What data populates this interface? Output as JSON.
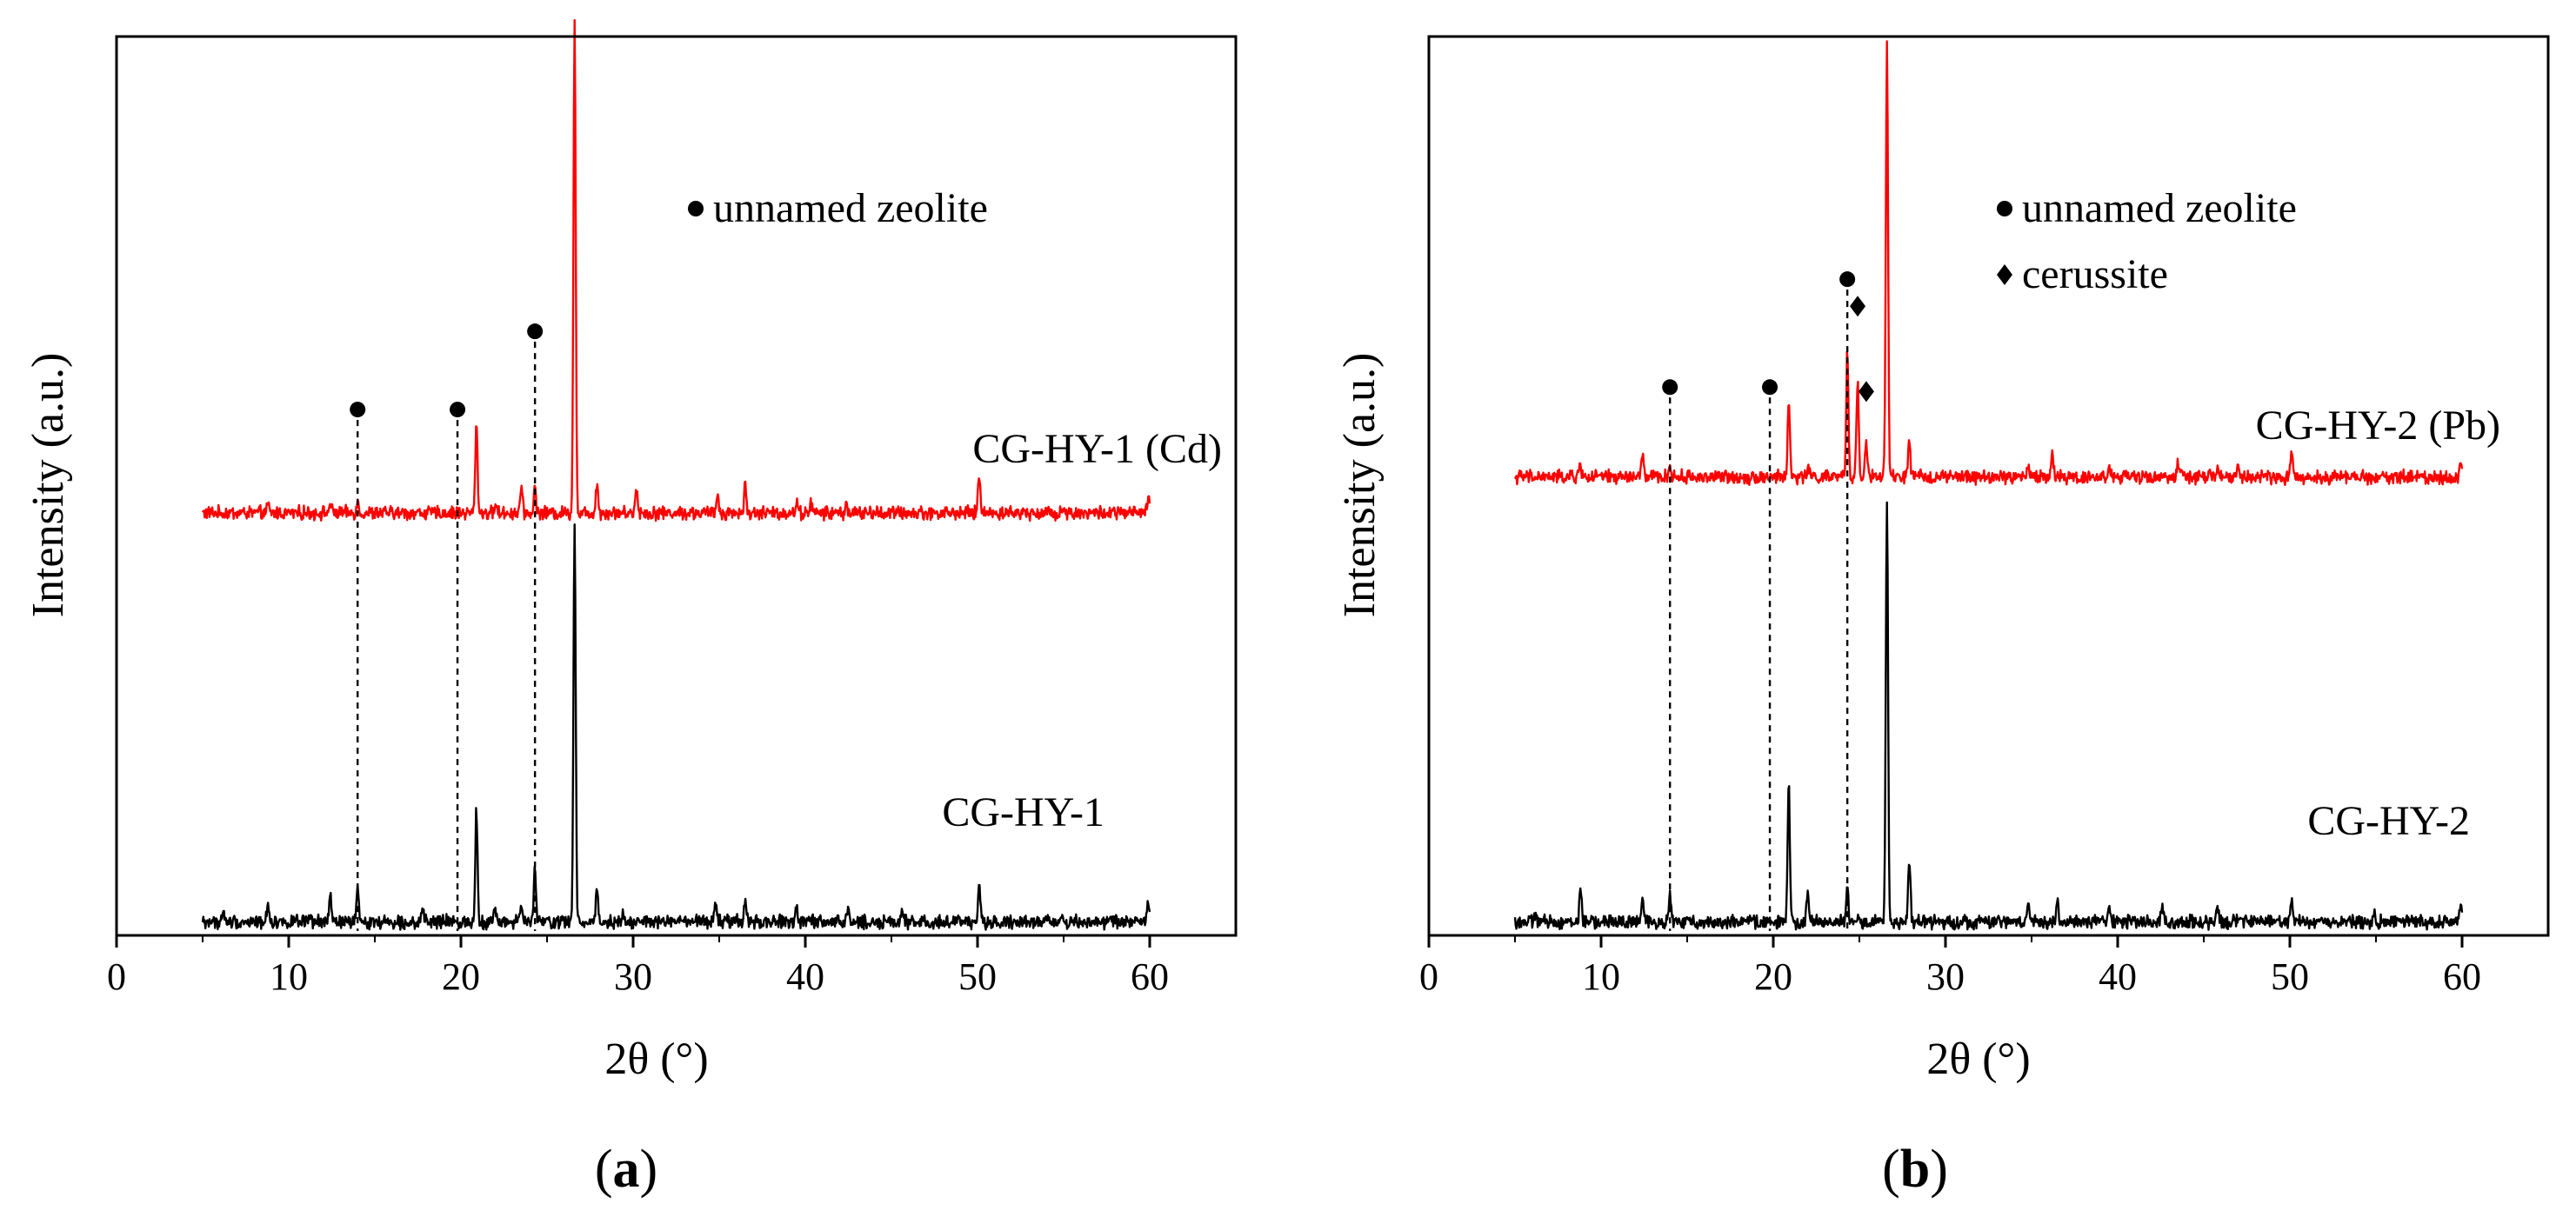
{
  "chart_data": [
    {
      "type": "line",
      "panel_label": "a",
      "xlabel": "2θ (°)",
      "ylabel": "Intensity (a.u.)",
      "xlim": [
        0,
        65
      ],
      "ylim": [
        0,
        1
      ],
      "xticks": [
        0,
        10,
        20,
        30,
        40,
        50,
        60
      ],
      "legend": [
        {
          "marker": "circle",
          "label": "unnamed zeolite"
        }
      ],
      "reference_lines": [
        {
          "x": 14.0,
          "marker": "circle",
          "marker_y": 0.585
        },
        {
          "x": 19.8,
          "marker": "circle",
          "marker_y": 0.585
        },
        {
          "x": 24.3,
          "marker": "circle",
          "marker_y": 0.672
        }
      ],
      "series": [
        {
          "name": "CG-HY-1 (Cd)",
          "color": "#ff0000",
          "baseline": 0.47,
          "x_range": [
            5,
            60
          ],
          "noise": 0.006,
          "peaks": [
            [
              8.8,
              0.008
            ],
            [
              12.4,
              0.01
            ],
            [
              14.0,
              0.012
            ],
            [
              20.9,
              0.1
            ],
            [
              22.0,
              0.01
            ],
            [
              23.5,
              0.03
            ],
            [
              24.3,
              0.028
            ],
            [
              26.6,
              0.55
            ],
            [
              27.9,
              0.035
            ],
            [
              30.2,
              0.03
            ],
            [
              34.9,
              0.02
            ],
            [
              36.5,
              0.03
            ],
            [
              39.5,
              0.012
            ],
            [
              40.3,
              0.012
            ],
            [
              42.4,
              0.01
            ],
            [
              50.1,
              0.045
            ],
            [
              54.9,
              0.006
            ],
            [
              59.9,
              0.016
            ]
          ]
        },
        {
          "name": "CG-HY-1",
          "color": "#000000",
          "baseline": 0.015,
          "x_range": [
            5,
            60
          ],
          "noise": 0.006,
          "peaks": [
            [
              6.2,
              0.01
            ],
            [
              8.8,
              0.022
            ],
            [
              12.4,
              0.03
            ],
            [
              14.0,
              0.035
            ],
            [
              17.8,
              0.01
            ],
            [
              20.9,
              0.125
            ],
            [
              22.0,
              0.015
            ],
            [
              23.5,
              0.02
            ],
            [
              24.3,
              0.06
            ],
            [
              26.6,
              0.44
            ],
            [
              27.9,
              0.04
            ],
            [
              29.4,
              0.01
            ],
            [
              34.8,
              0.025
            ],
            [
              36.5,
              0.025
            ],
            [
              39.5,
              0.018
            ],
            [
              42.5,
              0.015
            ],
            [
              45.6,
              0.008
            ],
            [
              50.1,
              0.04
            ],
            [
              54.9,
              0.008
            ],
            [
              59.9,
              0.02
            ]
          ]
        }
      ],
      "annotations": [
        "CG-HY-1 (Cd)",
        "CG-HY-1"
      ]
    },
    {
      "type": "line",
      "panel_label": "b",
      "xlabel": "2θ (°)",
      "ylabel": "Intensity (a.u.)",
      "xlim": [
        0,
        65
      ],
      "ylim": [
        0,
        1
      ],
      "xticks": [
        0,
        10,
        20,
        30,
        40,
        50,
        60
      ],
      "legend": [
        {
          "marker": "circle",
          "label": "unnamed zeolite"
        },
        {
          "marker": "diamond",
          "label": "cerussite"
        }
      ],
      "reference_lines": [
        {
          "x": 14.0,
          "marker": "circle",
          "marker_y": 0.61
        },
        {
          "x": 19.8,
          "marker": "circle",
          "marker_y": 0.61
        },
        {
          "x": 24.3,
          "marker": "circle",
          "marker_y": 0.73
        }
      ],
      "extra_markers": [
        {
          "x": 24.9,
          "marker": "diamond",
          "y": 0.7
        },
        {
          "x": 25.4,
          "marker": "diamond",
          "y": 0.605
        }
      ],
      "series": [
        {
          "name": "CG-HY-2 (Pb)",
          "color": "#ff0000",
          "baseline": 0.51,
          "x_range": [
            5,
            60
          ],
          "noise": 0.006,
          "peaks": [
            [
              8.8,
              0.015
            ],
            [
              12.4,
              0.025
            ],
            [
              14.0,
              0.012
            ],
            [
              20.9,
              0.085
            ],
            [
              22.0,
              0.012
            ],
            [
              24.3,
              0.14
            ],
            [
              24.9,
              0.11
            ],
            [
              25.4,
              0.04
            ],
            [
              26.6,
              0.48
            ],
            [
              27.9,
              0.04
            ],
            [
              34.8,
              0.015
            ],
            [
              36.2,
              0.03
            ],
            [
              39.5,
              0.012
            ],
            [
              43.5,
              0.018
            ],
            [
              45.8,
              0.012
            ],
            [
              47.0,
              0.01
            ],
            [
              50.1,
              0.022
            ],
            [
              59.9,
              0.015
            ]
          ]
        },
        {
          "name": "CG-HY-2",
          "color": "#000000",
          "baseline": 0.015,
          "x_range": [
            5,
            60
          ],
          "noise": 0.006,
          "peaks": [
            [
              6.2,
              0.01
            ],
            [
              8.8,
              0.04
            ],
            [
              12.4,
              0.025
            ],
            [
              14.0,
              0.03
            ],
            [
              20.9,
              0.15
            ],
            [
              22.0,
              0.035
            ],
            [
              24.3,
              0.04
            ],
            [
              26.6,
              0.47
            ],
            [
              27.9,
              0.07
            ],
            [
              34.8,
              0.025
            ],
            [
              36.5,
              0.02
            ],
            [
              39.5,
              0.02
            ],
            [
              42.6,
              0.018
            ],
            [
              45.8,
              0.012
            ],
            [
              50.1,
              0.025
            ],
            [
              54.9,
              0.01
            ],
            [
              59.9,
              0.022
            ]
          ]
        }
      ],
      "annotations": [
        "CG-HY-2 (Pb)",
        "CG-HY-2"
      ]
    }
  ]
}
